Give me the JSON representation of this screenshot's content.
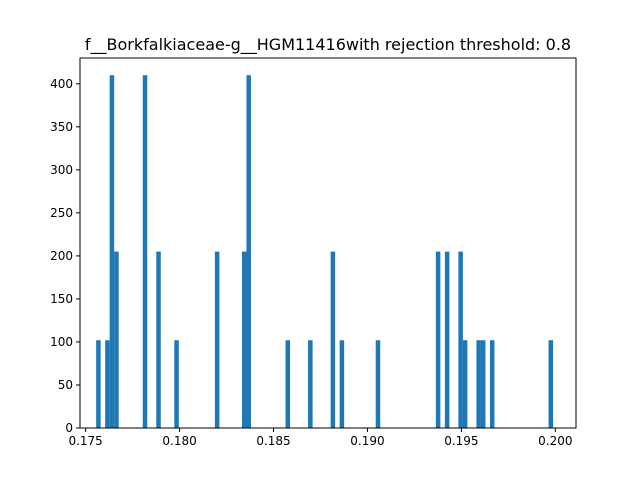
{
  "chart_data": {
    "type": "bar",
    "title": "f__Borkfalkiaceae-g__HGM11416with rejection threshold: 0.8",
    "xlabel": "",
    "ylabel": "",
    "xlim": [
      0.1747,
      0.2011
    ],
    "ylim": [
      0,
      430
    ],
    "x_ticks": [
      {
        "value": 0.175,
        "label": "0.175"
      },
      {
        "value": 0.18,
        "label": "0.180"
      },
      {
        "value": 0.185,
        "label": "0.185"
      },
      {
        "value": 0.19,
        "label": "0.190"
      },
      {
        "value": 0.195,
        "label": "0.195"
      },
      {
        "value": 0.2,
        "label": "0.200"
      }
    ],
    "y_ticks": [
      {
        "value": 0,
        "label": "0"
      },
      {
        "value": 50,
        "label": "50"
      },
      {
        "value": 100,
        "label": "100"
      },
      {
        "value": 150,
        "label": "150"
      },
      {
        "value": 200,
        "label": "200"
      },
      {
        "value": 250,
        "label": "250"
      },
      {
        "value": 300,
        "label": "300"
      },
      {
        "value": 350,
        "label": "350"
      },
      {
        "value": 400,
        "label": "400"
      }
    ],
    "bin_width": 0.00024,
    "bar_color": "#1f77b4",
    "bins": [
      {
        "x": 0.17556,
        "count": 102
      },
      {
        "x": 0.17604,
        "count": 102
      },
      {
        "x": 0.17628,
        "count": 410
      },
      {
        "x": 0.17652,
        "count": 205
      },
      {
        "x": 0.17804,
        "count": 410
      },
      {
        "x": 0.17876,
        "count": 205
      },
      {
        "x": 0.17972,
        "count": 102
      },
      {
        "x": 0.18188,
        "count": 205
      },
      {
        "x": 0.18332,
        "count": 205
      },
      {
        "x": 0.18356,
        "count": 410
      },
      {
        "x": 0.18564,
        "count": 102
      },
      {
        "x": 0.18684,
        "count": 102
      },
      {
        "x": 0.18804,
        "count": 205
      },
      {
        "x": 0.18852,
        "count": 102
      },
      {
        "x": 0.19044,
        "count": 102
      },
      {
        "x": 0.19364,
        "count": 205
      },
      {
        "x": 0.19412,
        "count": 205
      },
      {
        "x": 0.19484,
        "count": 205
      },
      {
        "x": 0.19508,
        "count": 102
      },
      {
        "x": 0.1958,
        "count": 102
      },
      {
        "x": 0.19604,
        "count": 102
      },
      {
        "x": 0.19652,
        "count": 102
      },
      {
        "x": 0.19964,
        "count": 102
      }
    ]
  }
}
